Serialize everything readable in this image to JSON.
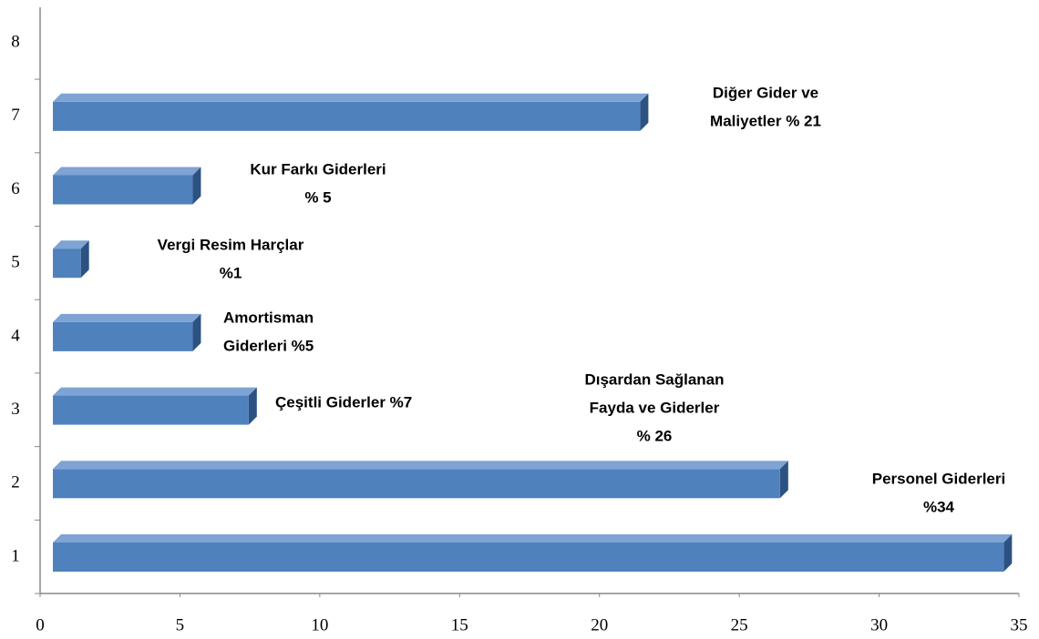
{
  "chart_data": {
    "type": "bar",
    "orientation": "horizontal",
    "categories": [
      "1",
      "2",
      "3",
      "4",
      "5",
      "6",
      "7",
      "8"
    ],
    "values": [
      34,
      26,
      7,
      5,
      1,
      5,
      21,
      null
    ],
    "value_labels": [
      [
        "Personel Giderleri",
        "%34"
      ],
      [
        "Dışardan Sağlanan",
        "Fayda ve Giderler",
        "% 26"
      ],
      [
        "Çeşitli Giderler %7"
      ],
      [
        "Amortisman",
        "Giderleri %5"
      ],
      [
        "Vergi Resim Harçlar",
        "%1"
      ],
      [
        "Kur Farkı Giderleri",
        "% 5"
      ],
      [
        "Diğer Gider ve",
        "Maliyetler % 21"
      ],
      null
    ],
    "color": "#4f81bd",
    "xlim": [
      0,
      35
    ],
    "xticks": [
      0,
      5,
      10,
      15,
      20,
      25,
      30,
      35
    ],
    "grid": false
  }
}
